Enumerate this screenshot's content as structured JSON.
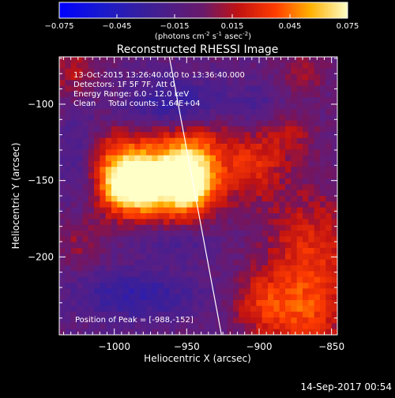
{
  "colorbar": {
    "ticks": [
      "-0.075",
      "-0.045",
      "-0.015",
      "0.015",
      "0.045",
      "0.075"
    ],
    "units_main": "(photons cm",
    "units_exp1": "-2",
    "units_mid": " s",
    "units_exp2": "-1",
    "units_end": " asec",
    "units_exp3": "-2",
    "units_close": ")",
    "range": [
      -0.075,
      0.075
    ]
  },
  "chart_data": {
    "type": "heatmap",
    "title": "Reconstructed RHESSI Image",
    "xlabel": "Heliocentric X (arcsec)",
    "ylabel": "Heliocentric Y (arcsec)",
    "xlim": [
      -1038,
      -846
    ],
    "ylim": [
      -251,
      -69
    ],
    "xticks": [
      -1000,
      -950,
      -900,
      -850
    ],
    "yticks": [
      -100,
      -150,
      -200
    ],
    "xtick_labels": [
      "−1000",
      "−950",
      "−900",
      "−850"
    ],
    "ytick_labels": [
      "−100",
      "−150",
      "−200"
    ],
    "annotations": [
      "13-Oct-2015 13:26:40.000 to 13:36:40.000",
      "Detectors: 1F 5F 7F, Att 0",
      "Energy Range: 6.0 - 12.0 keV",
      "Clean     Total counts: 1.64E+04"
    ],
    "peak_label": "Position of Peak = [-988,-152]",
    "peak_position": [
      -988,
      -152
    ],
    "sources": [
      {
        "x": -988,
        "y": -152,
        "value": 0.075
      },
      {
        "x": -950,
        "y": -150,
        "value": 0.072
      }
    ],
    "limb_line": {
      "x": [
        -962,
        -926
      ],
      "y": [
        -69,
        -251
      ]
    }
  },
  "footer": {
    "timestamp": "14-Sep-2017 00:54"
  }
}
